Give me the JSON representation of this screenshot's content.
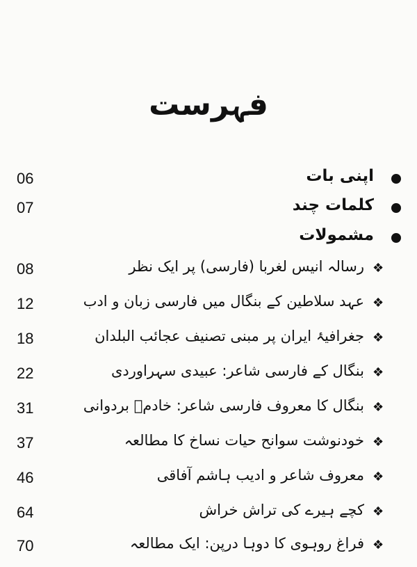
{
  "title": "فہرست",
  "sections": [
    {
      "label": "اپنی بات",
      "page": "06"
    },
    {
      "label": "کلمات چند",
      "page": "07"
    },
    {
      "label": "مشمولات",
      "page": ""
    }
  ],
  "contents": [
    {
      "label": "رسالہ انیس لغربا (فارسی) پر ایک نظر",
      "page": "08"
    },
    {
      "label": "عہد سلاطین کے بنگال میں فارسی زبان و ادب",
      "page": "12"
    },
    {
      "label": "جغرافیۂ ایران پر مبنی تصنیف عجائب البلدان",
      "page": "18"
    },
    {
      "label": "بنگال کے فارسی شاعر: عبیدی سہراوردی",
      "page": "22"
    },
    {
      "label": "بنگال کا معروف فارسی شاعر: خادمؔ بردوانی",
      "page": "31"
    },
    {
      "label": "خودنوشت سوانح حیات نساخ کا مطالعہ",
      "page": "37"
    },
    {
      "label": "معروف شاعر و ادیب ہاشم آفاقی",
      "page": "46"
    },
    {
      "label": "کچے ہیرے کی تراش خراش",
      "page": "64"
    },
    {
      "label": "فراغ روہوی کا دوہا درپن: ایک مطالعہ",
      "page": "70"
    }
  ],
  "icons": {
    "section_bullet": "filled-circle",
    "content_bullet": "four-diamond"
  }
}
